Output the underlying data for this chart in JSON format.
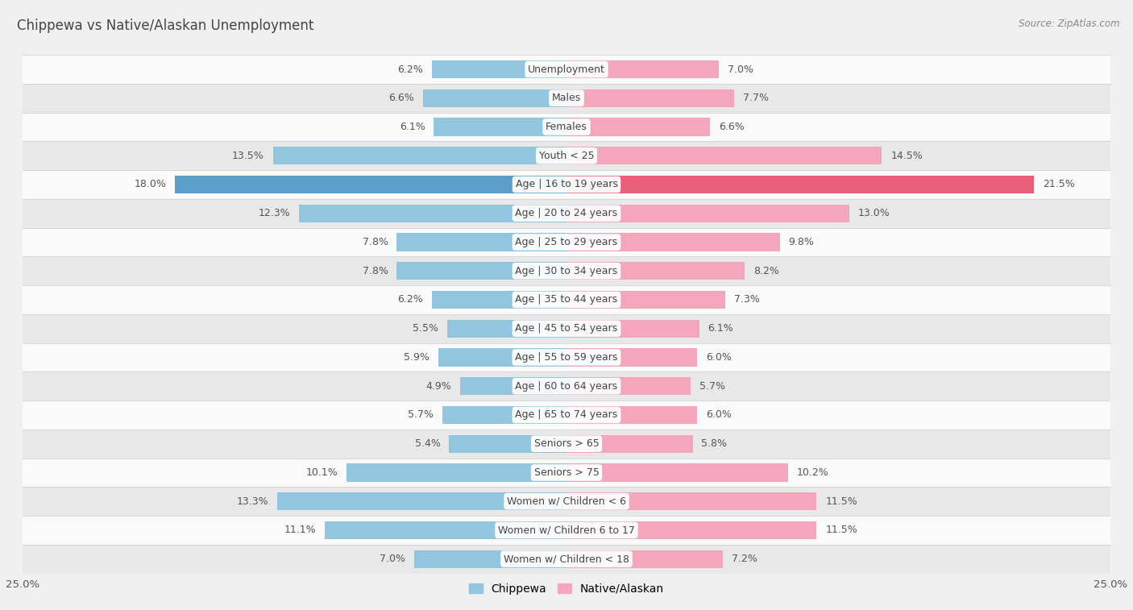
{
  "title": "Chippewa vs Native/Alaskan Unemployment",
  "source": "Source: ZipAtlas.com",
  "categories": [
    "Unemployment",
    "Males",
    "Females",
    "Youth < 25",
    "Age | 16 to 19 years",
    "Age | 20 to 24 years",
    "Age | 25 to 29 years",
    "Age | 30 to 34 years",
    "Age | 35 to 44 years",
    "Age | 45 to 54 years",
    "Age | 55 to 59 years",
    "Age | 60 to 64 years",
    "Age | 65 to 74 years",
    "Seniors > 65",
    "Seniors > 75",
    "Women w/ Children < 6",
    "Women w/ Children 6 to 17",
    "Women w/ Children < 18"
  ],
  "chippewa": [
    6.2,
    6.6,
    6.1,
    13.5,
    18.0,
    12.3,
    7.8,
    7.8,
    6.2,
    5.5,
    5.9,
    4.9,
    5.7,
    5.4,
    10.1,
    13.3,
    11.1,
    7.0
  ],
  "native_alaskan": [
    7.0,
    7.7,
    6.6,
    14.5,
    21.5,
    13.0,
    9.8,
    8.2,
    7.3,
    6.1,
    6.0,
    5.7,
    6.0,
    5.8,
    10.2,
    11.5,
    11.5,
    7.2
  ],
  "chippewa_color": "#92c5de",
  "native_color": "#f4a6bc",
  "chippewa_highlight": "#5b9ec9",
  "native_highlight": "#e8607a",
  "axis_max": 25.0,
  "bar_height": 0.62,
  "bg_color": "#f0f0f0",
  "row_color_light": "#fafafa",
  "row_color_dark": "#e8e8e8",
  "label_fontsize": 9.0,
  "value_fontsize": 9.0,
  "title_fontsize": 12,
  "source_fontsize": 8.5,
  "legend_fontsize": 10
}
